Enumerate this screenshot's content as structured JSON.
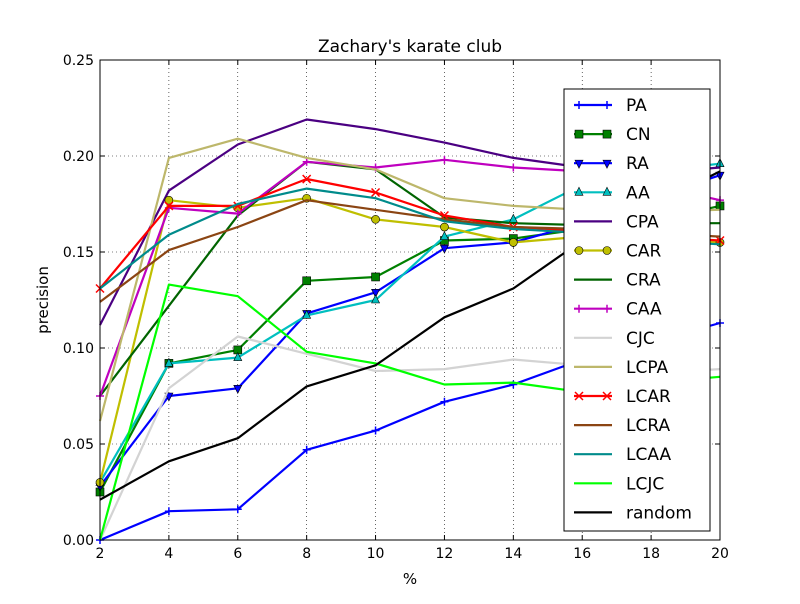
{
  "chart_data": {
    "type": "line",
    "title": "Zachary's karate club",
    "xlabel": "%",
    "ylabel": "precision",
    "xlim": [
      2,
      20
    ],
    "ylim": [
      0.0,
      0.25
    ],
    "x_ticks": [
      2,
      4,
      6,
      8,
      10,
      12,
      14,
      16,
      18,
      20
    ],
    "x_tick_labels": [
      "2",
      "4",
      "6",
      "8",
      "10",
      "12",
      "14",
      "16",
      "18",
      "20"
    ],
    "y_ticks": [
      0.0,
      0.05,
      0.1,
      0.15,
      0.2,
      0.25
    ],
    "y_tick_labels": [
      "0.00",
      "0.05",
      "0.10",
      "0.15",
      "0.20",
      "0.25"
    ],
    "grid": true,
    "legend_position": "right",
    "x": [
      2,
      4,
      6,
      8,
      10,
      12,
      14,
      16,
      18,
      20
    ],
    "series": [
      {
        "name": "PA",
        "color": "#0000ff",
        "marker": "plus",
        "values": [
          0.0,
          0.015,
          0.016,
          0.047,
          0.057,
          0.072,
          0.081,
          0.094,
          0.103,
          0.113
        ]
      },
      {
        "name": "CN",
        "color": "#008000",
        "marker": "square",
        "values": [
          0.025,
          0.092,
          0.099,
          0.135,
          0.137,
          0.156,
          0.157,
          0.162,
          0.166,
          0.174
        ]
      },
      {
        "name": "RA",
        "color": "#0000ff",
        "marker": "triangle-down",
        "values": [
          0.028,
          0.075,
          0.079,
          0.118,
          0.129,
          0.152,
          0.155,
          0.165,
          0.178,
          0.19
        ]
      },
      {
        "name": "AA",
        "color": "#00bfbf",
        "marker": "triangle-up",
        "values": [
          0.03,
          0.092,
          0.095,
          0.117,
          0.125,
          0.158,
          0.167,
          0.185,
          0.192,
          0.196
        ]
      },
      {
        "name": "CPA",
        "color": "#4b0082",
        "marker": "none",
        "values": [
          0.112,
          0.182,
          0.206,
          0.219,
          0.214,
          0.207,
          0.199,
          0.194,
          0.191,
          0.194
        ]
      },
      {
        "name": "CAR",
        "color": "#bfbf00",
        "marker": "circle",
        "values": [
          0.03,
          0.177,
          0.173,
          0.178,
          0.167,
          0.163,
          0.155,
          0.158,
          0.156,
          0.155
        ]
      },
      {
        "name": "CRA",
        "color": "#006400",
        "marker": "none",
        "values": [
          0.075,
          0.122,
          0.169,
          0.197,
          0.193,
          0.168,
          0.165,
          0.164,
          0.165,
          0.165
        ]
      },
      {
        "name": "CAA",
        "color": "#bf00bf",
        "marker": "plus",
        "values": [
          0.075,
          0.173,
          0.17,
          0.197,
          0.194,
          0.198,
          0.194,
          0.192,
          0.185,
          0.177
        ]
      },
      {
        "name": "CJC",
        "color": "#d3d3d3",
        "marker": "none",
        "values": [
          0.0,
          0.079,
          0.106,
          0.097,
          0.088,
          0.089,
          0.094,
          0.091,
          0.087,
          0.089
        ]
      },
      {
        "name": "LCPA",
        "color": "#bdb76b",
        "marker": "none",
        "values": [
          0.062,
          0.199,
          0.209,
          0.199,
          0.193,
          0.178,
          0.174,
          0.172,
          0.171,
          0.172
        ]
      },
      {
        "name": "LCAR",
        "color": "#ff0000",
        "marker": "x",
        "values": [
          0.131,
          0.174,
          0.174,
          0.188,
          0.181,
          0.169,
          0.163,
          0.161,
          0.158,
          0.156
        ]
      },
      {
        "name": "LCRA",
        "color": "#8b4513",
        "marker": "none",
        "values": [
          0.124,
          0.151,
          0.163,
          0.177,
          0.172,
          0.167,
          0.163,
          0.162,
          0.16,
          0.158
        ]
      },
      {
        "name": "LCAA",
        "color": "#008b8b",
        "marker": "none",
        "values": [
          0.131,
          0.159,
          0.175,
          0.183,
          0.178,
          0.166,
          0.162,
          0.16,
          0.156,
          0.154
        ]
      },
      {
        "name": "LCJC",
        "color": "#00ff00",
        "marker": "none",
        "values": [
          0.0,
          0.133,
          0.127,
          0.098,
          0.092,
          0.081,
          0.082,
          0.077,
          0.082,
          0.085
        ]
      },
      {
        "name": "random",
        "color": "#000000",
        "marker": "none",
        "values": [
          0.021,
          0.041,
          0.053,
          0.08,
          0.091,
          0.116,
          0.131,
          0.156,
          0.174,
          0.192
        ]
      }
    ]
  }
}
